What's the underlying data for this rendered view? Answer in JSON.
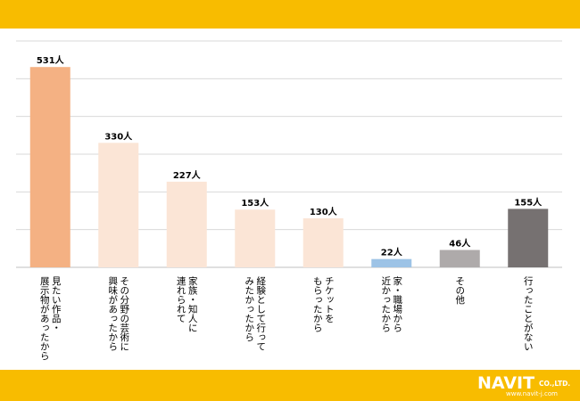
{
  "chart_data": {
    "type": "bar",
    "categories": [
      [
        "見たい作品・",
        "展示物があったから"
      ],
      [
        "その分野の芸術に",
        "興味があったから"
      ],
      [
        "家族・知人に",
        "連れられて"
      ],
      [
        "経験として行って",
        "みたかったから"
      ],
      [
        "チケットを",
        "もらったから"
      ],
      [
        "家・職場から",
        "近かったから"
      ],
      [
        "その他"
      ],
      [
        "行ったことがない"
      ]
    ],
    "values": [
      531,
      330,
      227,
      153,
      130,
      22,
      46,
      155
    ],
    "value_labels": [
      "531人",
      "330人",
      "227人",
      "153人",
      "130人",
      "22人",
      "46人",
      "155人"
    ],
    "bar_colors": [
      "#f4b183",
      "#fbe5d6",
      "#fbe5d6",
      "#fbe5d6",
      "#fbe5d6",
      "#9dc3e6",
      "#aeaaaa",
      "#767171"
    ],
    "ylim": [
      0,
      600
    ],
    "grid": true
  },
  "logo": {
    "brand": "NAVIT",
    "suffix": "CO.,LTD.",
    "url": "www.navit-j.com"
  },
  "colors": {
    "band": "#f8bc00",
    "gridline": "#d9d9d9",
    "label_text": "#000000"
  }
}
